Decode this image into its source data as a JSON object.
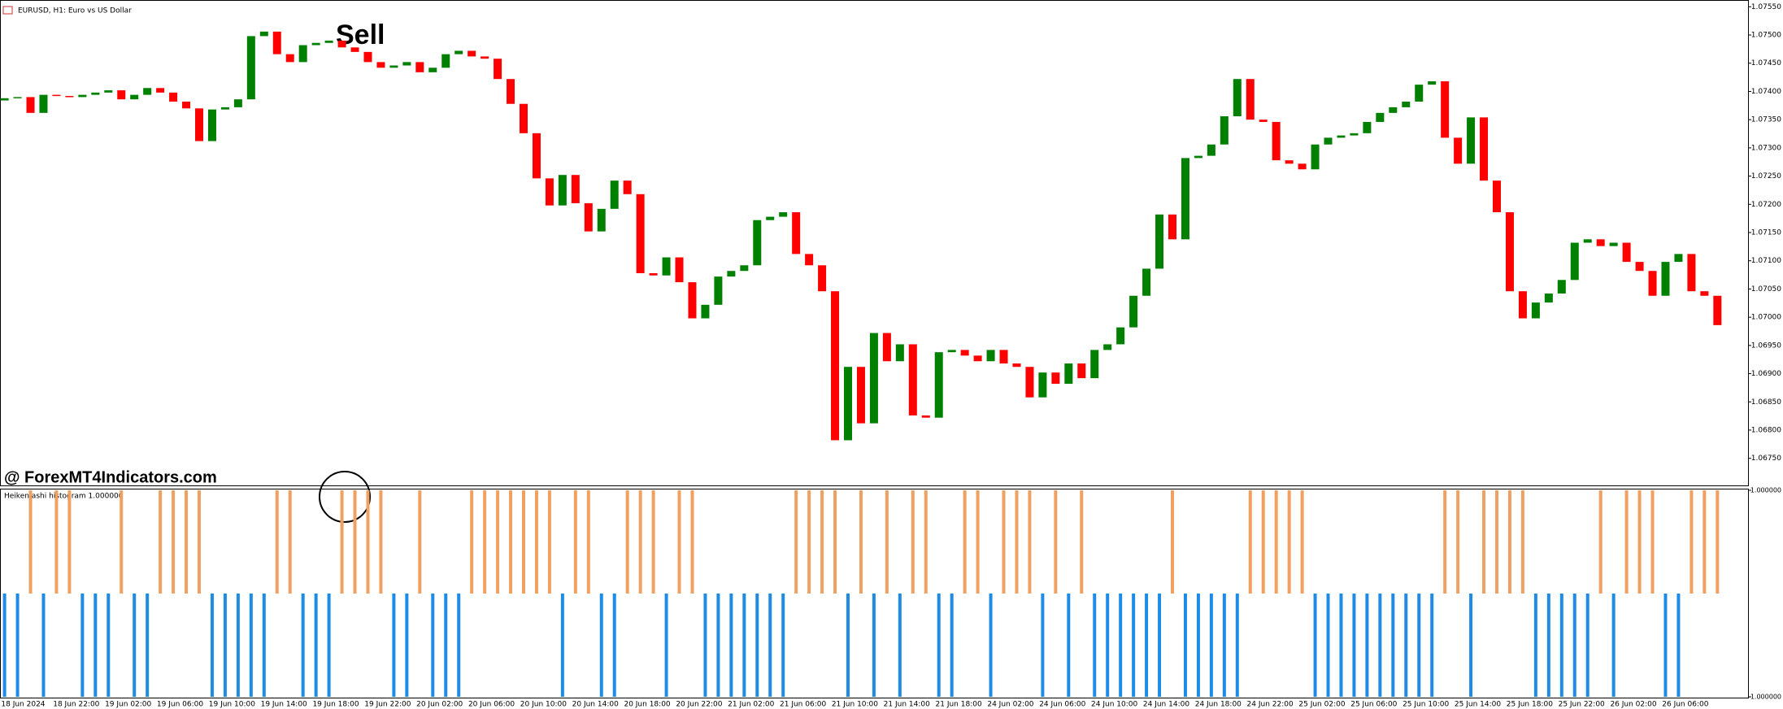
{
  "chart_data": [
    {
      "type": "candlestick",
      "title": "EURUSD, H1:  Euro vs US Dollar",
      "annotation": "Sell",
      "watermark": "@ ForexMT4Indicators.com",
      "up_color": "#008000",
      "down_color": "#ff0000",
      "open": 1.07384,
      "close": [
        1.07388,
        1.0739,
        1.07362,
        1.07394,
        1.07392,
        1.0739,
        1.07394,
        1.07398,
        1.07402,
        1.07386,
        1.07394,
        1.07406,
        1.07398,
        1.07382,
        1.0737,
        1.07312,
        1.07368,
        1.07372,
        1.07386,
        1.07498,
        1.07506,
        1.07466,
        1.07452,
        1.07482,
        1.07486,
        1.0749,
        1.07478,
        1.0747,
        1.07452,
        1.07442,
        1.07446,
        1.07452,
        1.07434,
        1.07442,
        1.07466,
        1.07472,
        1.07462,
        1.07458,
        1.07422,
        1.07378,
        1.07326,
        1.07246,
        1.07198,
        1.07252,
        1.07202,
        1.07152,
        1.07192,
        1.07242,
        1.07218,
        1.07078,
        1.07074,
        1.07106,
        1.07062,
        1.06998,
        1.07022,
        1.07072,
        1.07082,
        1.07092,
        1.07172,
        1.07178,
        1.07186,
        1.07112,
        1.07092,
        1.07046,
        1.06782,
        1.06912,
        1.06812,
        1.06972,
        1.06922,
        1.06952,
        1.06826,
        1.06822,
        1.06938,
        1.06942,
        1.06932,
        1.06922,
        1.06942,
        1.06918,
        1.06912,
        1.06858,
        1.06902,
        1.06882,
        1.06918,
        1.06892,
        1.06942,
        1.06952,
        1.06982,
        1.07038,
        1.07086,
        1.07182,
        1.07138,
        1.07282,
        1.07286,
        1.07306,
        1.07356,
        1.07422,
        1.0735,
        1.07346,
        1.07278,
        1.07272,
        1.07262,
        1.07306,
        1.07318,
        1.07322,
        1.07326,
        1.07346,
        1.07362,
        1.07372,
        1.07382,
        1.07412,
        1.07418,
        1.07318,
        1.07272,
        1.07354,
        1.07242,
        1.07186,
        1.07046,
        1.06998,
        1.07026,
        1.07042,
        1.07066,
        1.07132,
        1.07138,
        1.07126,
        1.07132,
        1.07098,
        1.07082,
        1.07038,
        1.07098,
        1.07112,
        1.07046,
        1.07038,
        1.06986
      ],
      "ylim": [
        1.06702,
        1.07562
      ],
      "yticks": [
        {
          "value": 1.0755,
          "label": "1.07550"
        },
        {
          "value": 1.075,
          "label": "1.07500"
        },
        {
          "value": 1.0745,
          "label": "1.07450"
        },
        {
          "value": 1.074,
          "label": "1.07400"
        },
        {
          "value": 1.0735,
          "label": "1.07350"
        },
        {
          "value": 1.073,
          "label": "1.07300"
        },
        {
          "value": 1.0725,
          "label": "1.07250"
        },
        {
          "value": 1.072,
          "label": "1.07200"
        },
        {
          "value": 1.0715,
          "label": "1.07150"
        },
        {
          "value": 1.071,
          "label": "1.07100"
        },
        {
          "value": 1.0705,
          "label": "1.07050"
        },
        {
          "value": 1.07,
          "label": "1.07000"
        },
        {
          "value": 1.0695,
          "label": "1.06950"
        },
        {
          "value": 1.069,
          "label": "1.06900"
        },
        {
          "value": 1.0685,
          "label": "1.06850"
        },
        {
          "value": 1.068,
          "label": "1.06800"
        },
        {
          "value": 1.0675,
          "label": "1.06750"
        }
      ],
      "time_labels": [
        "18 Jun 2024",
        "18 Jun 22:00",
        "19 Jun 02:00",
        "19 Jun 06:00",
        "19 Jun 10:00",
        "19 Jun 14:00",
        "19 Jun 18:00",
        "19 Jun 22:00",
        "20 Jun 02:00",
        "20 Jun 06:00",
        "20 Jun 10:00",
        "20 Jun 14:00",
        "20 Jun 18:00",
        "20 Jun 22:00",
        "21 Jun 02:00",
        "21 Jun 06:00",
        "21 Jun 10:00",
        "21 Jun 14:00",
        "21 Jun 18:00",
        "24 Jun 02:00",
        "24 Jun 06:00",
        "24 Jun 10:00",
        "24 Jun 14:00",
        "24 Jun 18:00",
        "24 Jun 22:00",
        "25 Jun 02:00",
        "25 Jun 06:00",
        "25 Jun 10:00",
        "25 Jun 14:00",
        "25 Jun 18:00",
        "25 Jun 22:00",
        "26 Jun 02:00",
        "26 Jun 06:00"
      ]
    },
    {
      "type": "bar",
      "title": "Heiken ashi histogram 1.000000",
      "positive_color": "#f0a060",
      "negative_color": "#1e8ce6",
      "values": [
        -1,
        -1,
        1,
        -1,
        1,
        1,
        -1,
        -1,
        -1,
        1,
        -1,
        -1,
        1,
        1,
        1,
        1,
        -1,
        -1,
        -1,
        -1,
        -1,
        1,
        1,
        -1,
        -1,
        -1,
        1,
        1,
        1,
        1,
        -1,
        -1,
        1,
        -1,
        -1,
        -1,
        1,
        1,
        1,
        1,
        1,
        1,
        1,
        -1,
        1,
        1,
        -1,
        -1,
        1,
        1,
        1,
        -1,
        1,
        1,
        -1,
        -1,
        -1,
        -1,
        -1,
        -1,
        -1,
        1,
        1,
        1,
        1,
        -1,
        1,
        -1,
        1,
        -1,
        1,
        1,
        -1,
        -1,
        1,
        1,
        -1,
        1,
        1,
        1,
        -1,
        1,
        -1,
        1,
        -1,
        -1,
        -1,
        -1,
        -1,
        -1,
        1,
        -1,
        -1,
        -1,
        -1,
        -1,
        1,
        1,
        1,
        1,
        1,
        -1,
        -1,
        -1,
        -1,
        -1,
        -1,
        -1,
        -1,
        -1,
        -1,
        1,
        1,
        -1,
        1,
        1,
        1,
        1,
        -1,
        -1,
        -1,
        -1,
        -1,
        1,
        -1,
        1,
        1,
        1,
        -1,
        -1,
        1,
        1,
        1
      ],
      "ylim": [
        -1,
        1
      ],
      "yticks": [
        {
          "value": 1,
          "label": "1.000000"
        },
        {
          "value": -1,
          "label": "-1.000000"
        }
      ]
    }
  ]
}
